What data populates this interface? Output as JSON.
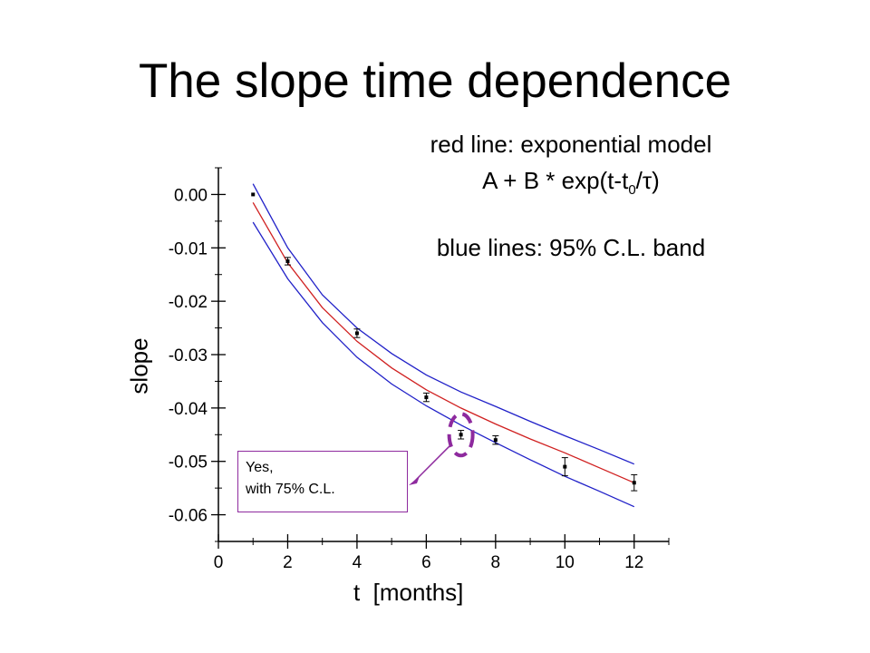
{
  "chart_data": {
    "type": "scatter",
    "title": "The slope time dependence",
    "xlabel": "t  [months]",
    "ylabel": "slope",
    "xlim": [
      0,
      13
    ],
    "ylim": [
      -0.065,
      0.005
    ],
    "x_ticks": [
      0,
      2,
      4,
      6,
      8,
      10,
      12
    ],
    "y_ticks": [
      0.0,
      -0.01,
      -0.02,
      -0.03,
      -0.04,
      -0.05,
      -0.06
    ],
    "x_tick_labels": [
      "0",
      "2",
      "4",
      "6",
      "8",
      "10",
      "12"
    ],
    "y_tick_labels": [
      "0.00",
      "-0.01",
      "-0.02",
      "-0.03",
      "-0.04",
      "-0.05",
      "-0.06"
    ],
    "grid": false,
    "points": {
      "x": [
        1,
        2,
        4,
        6,
        7,
        8,
        10,
        12
      ],
      "y": [
        0.0,
        -0.0125,
        -0.026,
        -0.038,
        -0.045,
        -0.046,
        -0.051,
        -0.054
      ],
      "yerr": [
        0.0,
        0.0007,
        0.0008,
        0.0008,
        0.0008,
        0.0008,
        0.0017,
        0.0015
      ],
      "color": "#000000"
    },
    "model_curve": {
      "color": "#d02020",
      "x": [
        1,
        2,
        3,
        4,
        5,
        6,
        7,
        8,
        9,
        10,
        11,
        12
      ],
      "y": [
        -0.0015,
        -0.0128,
        -0.0212,
        -0.0275,
        -0.0325,
        -0.0366,
        -0.04,
        -0.043,
        -0.0458,
        -0.0484,
        -0.0512,
        -0.054
      ]
    },
    "band_upper": {
      "color": "#2020c8",
      "x": [
        1,
        2,
        3,
        4,
        5,
        6,
        7,
        8,
        9,
        10,
        11,
        12
      ],
      "y": [
        0.002,
        -0.01,
        -0.0188,
        -0.025,
        -0.0298,
        -0.0338,
        -0.037,
        -0.0397,
        -0.0425,
        -0.0452,
        -0.0478,
        -0.0505
      ]
    },
    "band_lower": {
      "color": "#2020c8",
      "x": [
        1,
        2,
        3,
        4,
        5,
        6,
        7,
        8,
        9,
        10,
        11,
        12
      ],
      "y": [
        -0.0052,
        -0.0158,
        -0.024,
        -0.0305,
        -0.0355,
        -0.0396,
        -0.0432,
        -0.0465,
        -0.0497,
        -0.0528,
        -0.0556,
        -0.0585
      ]
    },
    "highlight": {
      "x": 7,
      "y": -0.045,
      "color": "#8e2a9e"
    },
    "annotations": {
      "line1": "red line: exponential model",
      "line2_main": "A + B * exp(t-t",
      "line2_sub": "0",
      "line2_tail": "/τ)",
      "line3": "blue lines: 95% C.L. band",
      "callout_line1": "Yes,",
      "callout_line2": "with 75% C.L."
    }
  }
}
